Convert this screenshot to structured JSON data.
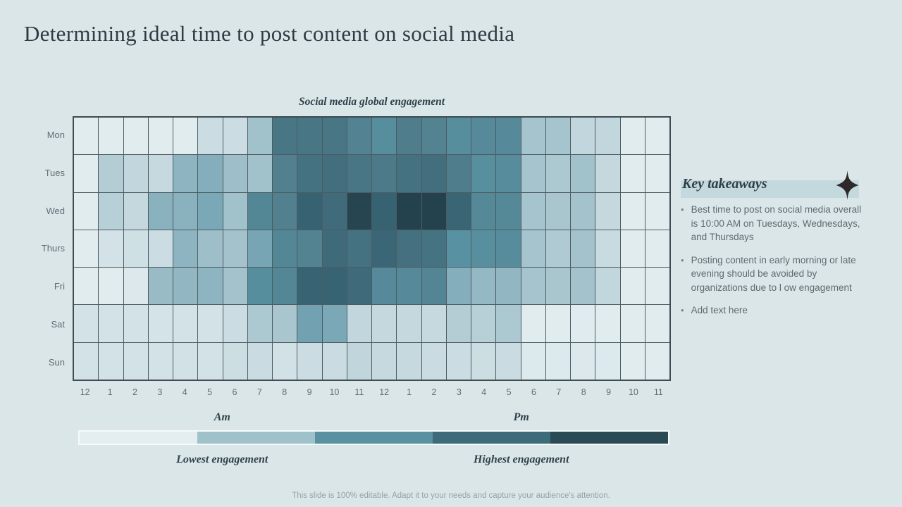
{
  "slide": {
    "title": "Determining ideal time to post content on social media",
    "footer": "This slide is 100% editable. Adapt it to your needs and capture your audience's attention."
  },
  "chart_data": {
    "type": "heatmap",
    "title": "Social media global engagement",
    "rows": [
      "Mon",
      "Tues",
      "Wed",
      "Thurs",
      "Fri",
      "Sat",
      "Sun"
    ],
    "columns": [
      "12",
      "1",
      "2",
      "3",
      "4",
      "5",
      "6",
      "7",
      "8",
      "9",
      "10",
      "11",
      "12",
      "1",
      "2",
      "3",
      "4",
      "5",
      "6",
      "7",
      "8",
      "9",
      "10",
      "11"
    ],
    "column_groups": [
      {
        "label": "Am",
        "span": 12
      },
      {
        "label": "Pm",
        "span": 12
      }
    ],
    "value_scale": {
      "min": 0,
      "max": 10,
      "meaning": "relative engagement, 0 = lowest, 10 = highest"
    },
    "values": [
      [
        0,
        0,
        0,
        0,
        0,
        1.2,
        1.2,
        3,
        6.6,
        6.6,
        6.6,
        5.8,
        5.2,
        6.2,
        5.9,
        5.2,
        5.4,
        5.4,
        2.8,
        2.8,
        1.7,
        1.7,
        0,
        0
      ],
      [
        0,
        2.3,
        1.7,
        1.5,
        3.7,
        4,
        3.1,
        3,
        6,
        6.9,
        7.1,
        6.6,
        6.4,
        6.9,
        7.1,
        6.2,
        5.1,
        5.3,
        2.8,
        2.6,
        3,
        1.6,
        0,
        0
      ],
      [
        0,
        2.2,
        1.6,
        3.8,
        3.8,
        4.2,
        3,
        5.6,
        6,
        7.9,
        7.3,
        9.8,
        7.9,
        10,
        10,
        7.7,
        5.5,
        5.5,
        2.8,
        2.7,
        2.9,
        1.6,
        0,
        0
      ],
      [
        0,
        0.8,
        1,
        1.2,
        3.7,
        3.1,
        2.9,
        4.3,
        5.6,
        5.9,
        7.4,
        6.9,
        7.6,
        7,
        6.8,
        5,
        5.1,
        5.3,
        2.8,
        2.5,
        2.9,
        1.4,
        0,
        0
      ],
      [
        0,
        0,
        0.3,
        3.3,
        3.5,
        3.7,
        2.9,
        5.2,
        5.6,
        7.8,
        7.8,
        7.4,
        5.4,
        5.4,
        5.7,
        4,
        3.4,
        3.5,
        2.8,
        2.7,
        2.9,
        1.7,
        0,
        0
      ],
      [
        0.8,
        0.8,
        0.8,
        0.7,
        0.8,
        0.8,
        1.2,
        2.6,
        2.7,
        4.4,
        4.2,
        1.7,
        1.6,
        1.6,
        1.5,
        2.3,
        2.2,
        2.6,
        0,
        0,
        0.1,
        0,
        0,
        0
      ],
      [
        0.8,
        0.8,
        0.8,
        0.8,
        0.9,
        0.8,
        1.1,
        1.3,
        0.9,
        1.2,
        1.3,
        1.8,
        1.5,
        1.5,
        1.3,
        1.2,
        1.1,
        1.3,
        0.2,
        0.2,
        0.3,
        0.2,
        0,
        0
      ]
    ],
    "color_stops": [
      {
        "v": 0,
        "c": "#e1ecef"
      },
      {
        "v": 2,
        "c": "#bdd3da"
      },
      {
        "v": 4,
        "c": "#84aebb"
      },
      {
        "v": 5,
        "c": "#5891a1"
      },
      {
        "v": 6,
        "c": "#52808f"
      },
      {
        "v": 8,
        "c": "#35606f"
      },
      {
        "v": 10,
        "c": "#24424d"
      }
    ],
    "legend": {
      "segments": [
        "#e4eef0",
        "#9fc1ca",
        "#5a91a1",
        "#3d6b7a",
        "#2a4a56"
      ],
      "low_label": "Lowest engagement",
      "high_label": "Highest engagement"
    },
    "grid": true,
    "legend_position": "bottom"
  },
  "takeaways": {
    "heading": "Key takeaways",
    "bullets": [
      {
        "text": "Best time to post on social media overall is 10:00 AM on Tuesdays, Wednesdays, and Thursdays"
      },
      {
        "text": "Posting content in early morning or late evening should be avoided by organizations due to l ow engagement"
      },
      {
        "text": "Add text here"
      }
    ]
  },
  "theme": {
    "background": "#dbe6e9",
    "title_color": "#2e3c43",
    "grid_line": "#4d5b62",
    "grid_border": "#3e4c53",
    "label_color": "#5e6e74",
    "accent_band": "#c3d9de",
    "star_color": "#2e282a",
    "body_text": "#5d6b71"
  }
}
